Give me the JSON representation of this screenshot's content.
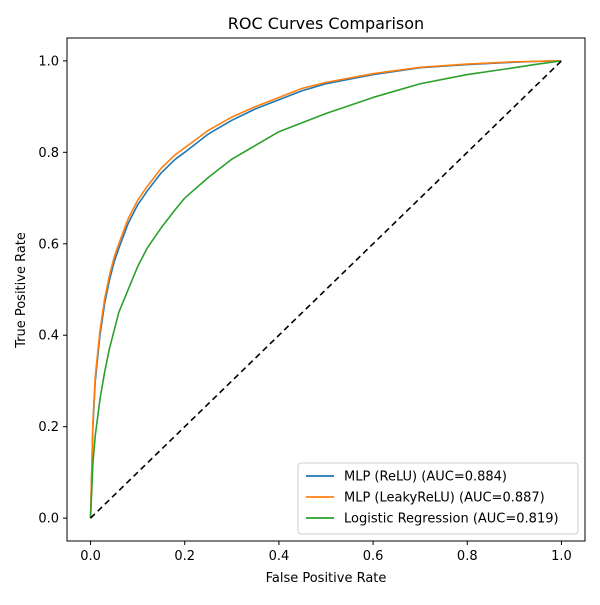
{
  "chart_data": {
    "type": "line",
    "title": "ROC Curves Comparison",
    "xlabel": "False Positive Rate",
    "ylabel": "True Positive Rate",
    "xlim": [
      -0.05,
      1.05
    ],
    "ylim": [
      -0.05,
      1.05
    ],
    "xticks": [
      0.0,
      0.2,
      0.4,
      0.6,
      0.8,
      1.0
    ],
    "xtick_labels": [
      "0.0",
      "0.2",
      "0.4",
      "0.6",
      "0.8",
      "1.0"
    ],
    "yticks": [
      0.0,
      0.2,
      0.4,
      0.6,
      0.8,
      1.0
    ],
    "ytick_labels": [
      "0.0",
      "0.2",
      "0.4",
      "0.6",
      "0.8",
      "1.0"
    ],
    "grid": false,
    "legend_position": "bottom-right",
    "series": [
      {
        "name": "MLP (ReLU) (AUC=0.884)",
        "color": "#1f77b4",
        "x": [
          0.0,
          0.005,
          0.01,
          0.02,
          0.03,
          0.04,
          0.05,
          0.06,
          0.08,
          0.1,
          0.12,
          0.15,
          0.18,
          0.2,
          0.25,
          0.3,
          0.35,
          0.4,
          0.45,
          0.5,
          0.6,
          0.7,
          0.8,
          0.9,
          0.95,
          1.0
        ],
        "y": [
          0.0,
          0.2,
          0.3,
          0.4,
          0.47,
          0.52,
          0.56,
          0.59,
          0.645,
          0.685,
          0.715,
          0.755,
          0.785,
          0.8,
          0.84,
          0.87,
          0.895,
          0.915,
          0.935,
          0.95,
          0.97,
          0.985,
          0.992,
          0.997,
          0.999,
          1.0
        ]
      },
      {
        "name": "MLP (LeakyReLU) (AUC=0.887)",
        "color": "#ff7f0e",
        "x": [
          0.0,
          0.005,
          0.01,
          0.02,
          0.03,
          0.04,
          0.05,
          0.06,
          0.08,
          0.1,
          0.12,
          0.15,
          0.18,
          0.2,
          0.25,
          0.3,
          0.35,
          0.4,
          0.45,
          0.5,
          0.6,
          0.7,
          0.8,
          0.9,
          0.95,
          1.0
        ],
        "y": [
          0.0,
          0.21,
          0.31,
          0.41,
          0.48,
          0.53,
          0.57,
          0.6,
          0.655,
          0.695,
          0.725,
          0.765,
          0.795,
          0.81,
          0.848,
          0.877,
          0.9,
          0.92,
          0.94,
          0.953,
          0.972,
          0.986,
          0.993,
          0.998,
          0.999,
          1.0
        ]
      },
      {
        "name": "Logistic Regression (AUC=0.819)",
        "color": "#2ca02c",
        "x": [
          0.0,
          0.005,
          0.01,
          0.02,
          0.03,
          0.04,
          0.05,
          0.06,
          0.08,
          0.1,
          0.12,
          0.15,
          0.18,
          0.2,
          0.25,
          0.3,
          0.35,
          0.4,
          0.45,
          0.5,
          0.6,
          0.7,
          0.8,
          0.9,
          0.95,
          1.0
        ],
        "y": [
          0.0,
          0.12,
          0.18,
          0.26,
          0.32,
          0.37,
          0.41,
          0.45,
          0.5,
          0.55,
          0.59,
          0.635,
          0.675,
          0.7,
          0.745,
          0.785,
          0.815,
          0.845,
          0.865,
          0.885,
          0.92,
          0.95,
          0.97,
          0.985,
          0.993,
          1.0
        ]
      }
    ],
    "reference_line": {
      "color": "#000000",
      "style": "dashed",
      "x": [
        0.0,
        1.0
      ],
      "y": [
        0.0,
        1.0
      ]
    }
  }
}
